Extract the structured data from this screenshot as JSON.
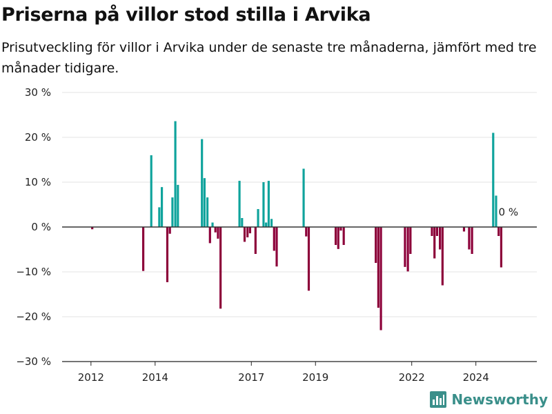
{
  "title": "Priserna på villor stod stilla i Arvika",
  "subtitle": "Prisutveckling för villor i Arvika under de senaste tre månaderna, jämfört med tre månader tidigare.",
  "brand": "Newsworthy",
  "colors": {
    "positive": "#0fa39c",
    "negative": "#8c0039",
    "grid": "#e3e3e3",
    "zero_line": "#333333"
  },
  "chart_data": {
    "type": "bar",
    "title": "Priserna på villor stod stilla i Arvika",
    "ylim": [
      -30,
      30
    ],
    "xlim": [
      2011.1,
      2025.9
    ],
    "y_ticks": [
      -30,
      -20,
      -10,
      0,
      10,
      20,
      30
    ],
    "y_tick_labels": [
      "−30 %",
      "−20 %",
      "−10 %",
      "0 %",
      "10 %",
      "20 %",
      "30 %"
    ],
    "x_ticks": [
      2012,
      2014,
      2017,
      2019,
      2022,
      2024
    ],
    "x_tick_labels": [
      "2012",
      "2014",
      "2017",
      "2019",
      "2022",
      "2024"
    ],
    "grid": true,
    "annotation": {
      "x": 2024.75,
      "y": 3.5,
      "text": "0 %"
    },
    "bars": [
      {
        "x": 2012.04,
        "y": -0.5
      },
      {
        "x": 2013.63,
        "y": -9.8
      },
      {
        "x": 2013.88,
        "y": 16.0
      },
      {
        "x": 2014.13,
        "y": 4.4
      },
      {
        "x": 2014.21,
        "y": 8.9
      },
      {
        "x": 2014.38,
        "y": -12.3
      },
      {
        "x": 2014.46,
        "y": -1.5
      },
      {
        "x": 2014.54,
        "y": 6.6
      },
      {
        "x": 2014.63,
        "y": 23.6
      },
      {
        "x": 2014.71,
        "y": 9.4
      },
      {
        "x": 2015.46,
        "y": 19.6
      },
      {
        "x": 2015.54,
        "y": 10.9
      },
      {
        "x": 2015.63,
        "y": 6.6
      },
      {
        "x": 2015.71,
        "y": -3.6
      },
      {
        "x": 2015.79,
        "y": 1.0
      },
      {
        "x": 2015.88,
        "y": -1.2
      },
      {
        "x": 2015.96,
        "y": -2.6
      },
      {
        "x": 2016.04,
        "y": -18.2
      },
      {
        "x": 2016.63,
        "y": 10.3
      },
      {
        "x": 2016.71,
        "y": 2.0
      },
      {
        "x": 2016.79,
        "y": -3.3
      },
      {
        "x": 2016.88,
        "y": -2.3
      },
      {
        "x": 2016.96,
        "y": -1.4
      },
      {
        "x": 2017.13,
        "y": -6.0
      },
      {
        "x": 2017.21,
        "y": 4.0
      },
      {
        "x": 2017.38,
        "y": 10.0
      },
      {
        "x": 2017.46,
        "y": 1.0
      },
      {
        "x": 2017.54,
        "y": 10.3
      },
      {
        "x": 2017.63,
        "y": 1.8
      },
      {
        "x": 2017.71,
        "y": -5.3
      },
      {
        "x": 2017.79,
        "y": -8.8
      },
      {
        "x": 2018.63,
        "y": 13.0
      },
      {
        "x": 2018.71,
        "y": -2.1
      },
      {
        "x": 2018.79,
        "y": -14.2
      },
      {
        "x": 2019.63,
        "y": -4.0
      },
      {
        "x": 2019.71,
        "y": -4.9
      },
      {
        "x": 2019.79,
        "y": -0.8
      },
      {
        "x": 2019.88,
        "y": -4.0
      },
      {
        "x": 2020.88,
        "y": -8.0
      },
      {
        "x": 2020.96,
        "y": -18.0
      },
      {
        "x": 2021.04,
        "y": -23.0
      },
      {
        "x": 2021.79,
        "y": -8.9
      },
      {
        "x": 2021.88,
        "y": -9.9
      },
      {
        "x": 2021.96,
        "y": -6.0
      },
      {
        "x": 2022.63,
        "y": -2.0
      },
      {
        "x": 2022.71,
        "y": -7.0
      },
      {
        "x": 2022.79,
        "y": -2.0
      },
      {
        "x": 2022.88,
        "y": -5.0
      },
      {
        "x": 2022.96,
        "y": -13.0
      },
      {
        "x": 2023.63,
        "y": -1.0
      },
      {
        "x": 2023.79,
        "y": -5.0
      },
      {
        "x": 2023.88,
        "y": -6.0
      },
      {
        "x": 2024.54,
        "y": 21.0
      },
      {
        "x": 2024.63,
        "y": 7.0
      },
      {
        "x": 2024.71,
        "y": -2.0
      },
      {
        "x": 2024.79,
        "y": -9.0
      }
    ]
  }
}
